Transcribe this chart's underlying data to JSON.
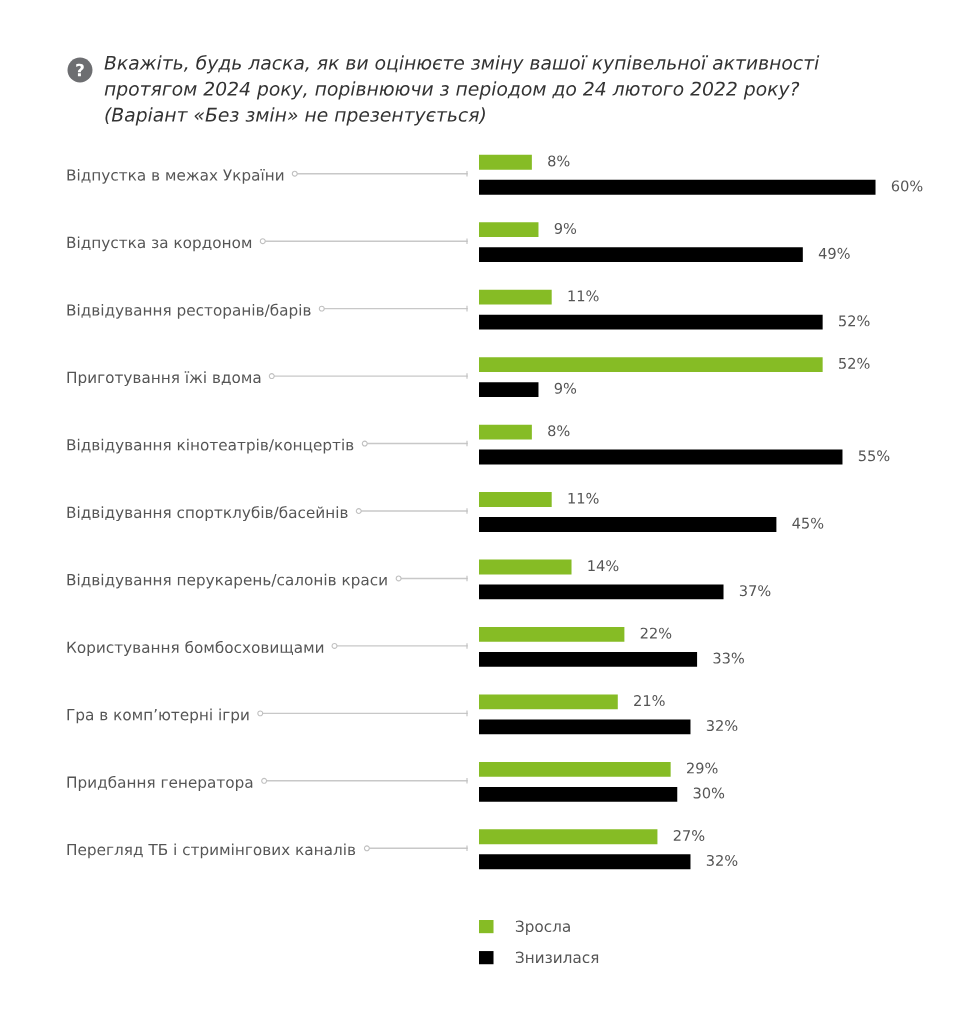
{
  "chart_data": {
    "type": "bar",
    "orientation": "horizontal",
    "title": "Вкажіть, будь ласка, як ви оцінюєте зміну вашої купівельної активності\nпротягом 2024 року, порівнюючи з періодом до 24 лютого 2022 року?\n(Варіант «Без змін» не презентується)",
    "categories": [
      "Відпустка в межах України",
      "Відпустка за кордоном",
      "Відвідування ресторанів/барів",
      "Приготування їжі вдома",
      "Відвідування кінотеатрів/концертів",
      "Відвідування спортклубів/басейнів",
      "Відвідування перукарень/салонів краси",
      "Користування бомбосховищами",
      "Гра в комп’ютерні ігри",
      "Придбання генератора",
      "Перегляд ТБ і стримінгових каналів"
    ],
    "series": [
      {
        "name": "Зросла",
        "color": "#86bc25",
        "values": [
          8,
          9,
          11,
          52,
          8,
          11,
          14,
          22,
          21,
          29,
          27
        ],
        "value_labels": [
          "8%",
          "9%",
          "11%",
          "52%",
          "8%",
          "11%",
          "14%",
          "22%",
          "21%",
          "29%",
          "27%"
        ]
      },
      {
        "name": "Знизилася",
        "color": "#000000",
        "values": [
          60,
          49,
          52,
          9,
          55,
          45,
          37,
          33,
          32,
          30,
          32
        ],
        "value_labels": [
          "60%",
          "49%",
          "52%",
          "9%",
          "55%",
          "45%",
          "37%",
          "33%",
          "32%",
          "30%",
          "32%"
        ]
      }
    ],
    "legend": "bottom",
    "grid": false,
    "tick_labels": "y"
  }
}
